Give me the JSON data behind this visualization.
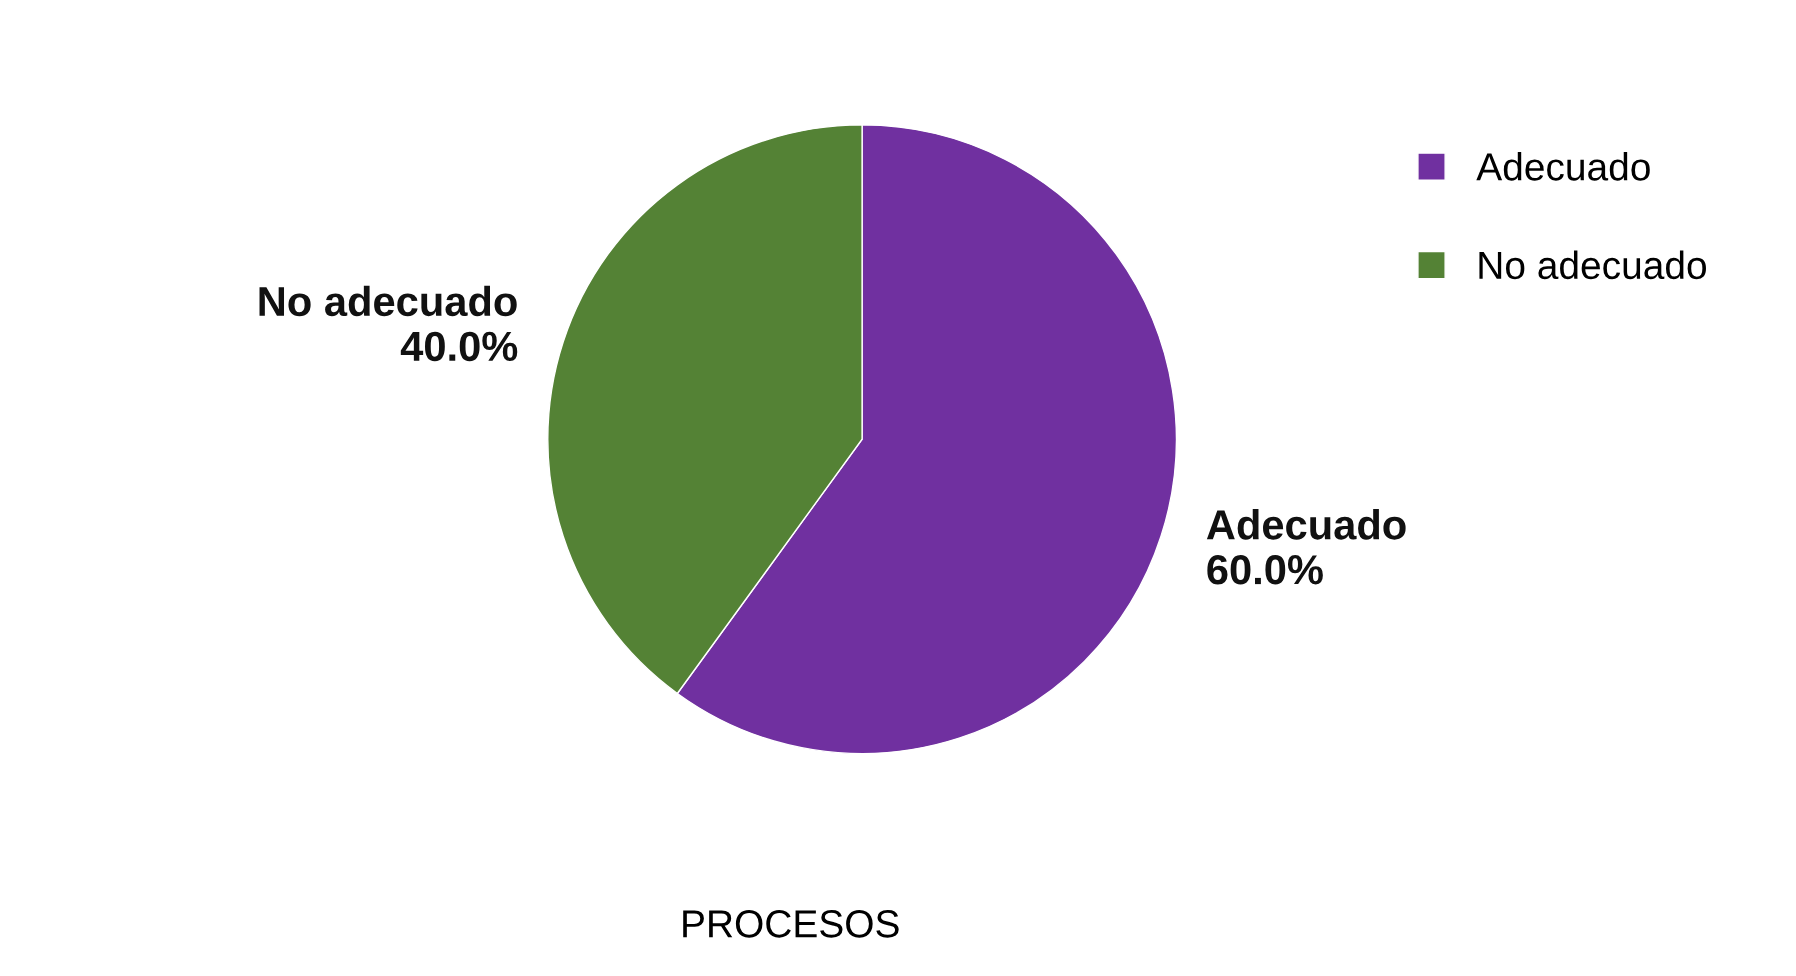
{
  "chart_data": {
    "type": "pie",
    "title": "PROCESOS",
    "categories": [
      "Adecuado",
      "No adecuado"
    ],
    "values": [
      60,
      40
    ],
    "colors": [
      "#7030a0",
      "#548235"
    ],
    "value_labels": [
      "60.0%",
      "40.0%"
    ],
    "legend": "right"
  }
}
